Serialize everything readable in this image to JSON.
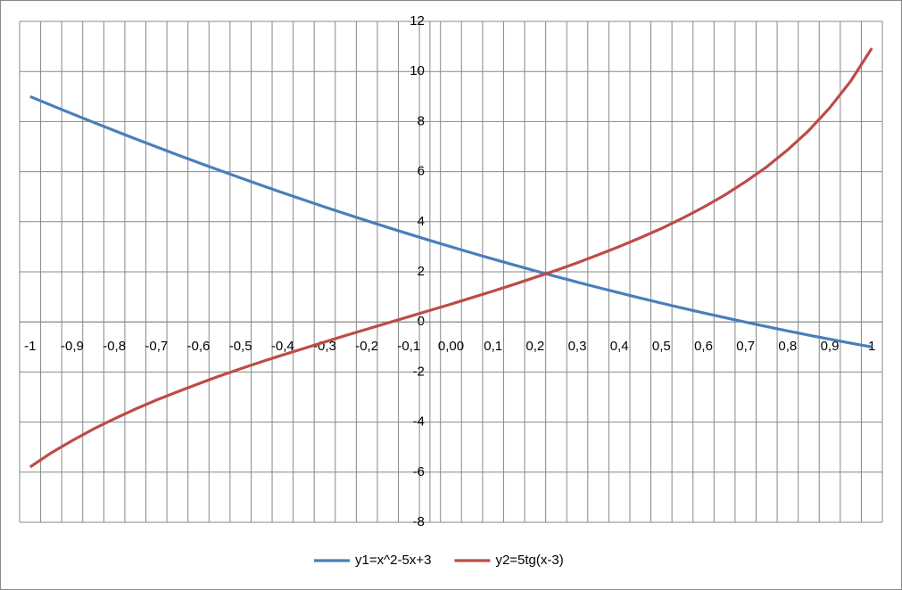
{
  "chart_data": {
    "type": "line",
    "categories": [
      "-1",
      null,
      "-0,9",
      null,
      "-0,8",
      null,
      "-0,7",
      null,
      "-0,6",
      null,
      "-0,5",
      null,
      "-0,4",
      null,
      "-0,3",
      null,
      "-0,2",
      null,
      "-0,1",
      null,
      "0,00",
      null,
      "0,1",
      null,
      "0,2",
      null,
      "0,3",
      null,
      "0,4",
      null,
      "0,5",
      null,
      "0,6",
      null,
      "0,7",
      null,
      "0,8",
      null,
      "0,9",
      null,
      "1"
    ],
    "series": [
      {
        "name": "y1=x^2-5x+3",
        "color": "#4a7ebb",
        "values": [
          9,
          8.6525,
          8.31,
          7.9725,
          7.64,
          7.3125,
          6.99,
          6.6725,
          6.36,
          6.0525,
          5.75,
          5.4525,
          5.16,
          4.8725,
          4.59,
          4.3125,
          4.04,
          3.7725,
          3.51,
          3.2525,
          3,
          2.7525,
          2.51,
          2.2725,
          2.04,
          1.8125,
          1.59,
          1.3725,
          1.16,
          0.9525,
          0.75,
          0.5525,
          0.36,
          0.1725,
          -0.01,
          -0.1875,
          -0.36,
          -0.5275,
          -0.69,
          -0.8475,
          -1
        ]
      },
      {
        "name": "y2=5tg(x-3)",
        "color": "#be4b48",
        "values": [
          -5.79,
          -5.23,
          -4.74,
          -4.28,
          -3.87,
          -3.48,
          -3.12,
          -2.79,
          -2.47,
          -2.16,
          -1.87,
          -1.59,
          -1.32,
          -1.06,
          -0.8,
          -0.54,
          -0.29,
          -0.04,
          0.21,
          0.46,
          0.71,
          0.97,
          1.23,
          1.5,
          1.78,
          2.06,
          2.36,
          2.68,
          3.01,
          3.36,
          3.73,
          4.14,
          4.58,
          5.06,
          5.6,
          6.19,
          6.87,
          7.64,
          8.55,
          9.62,
          10.93
        ]
      }
    ],
    "ylim": [
      -8,
      12
    ],
    "yticks": [
      -8,
      -6,
      -4,
      -2,
      0,
      2,
      4,
      6,
      8,
      10,
      12
    ],
    "grid": true,
    "legend": "bottom"
  }
}
